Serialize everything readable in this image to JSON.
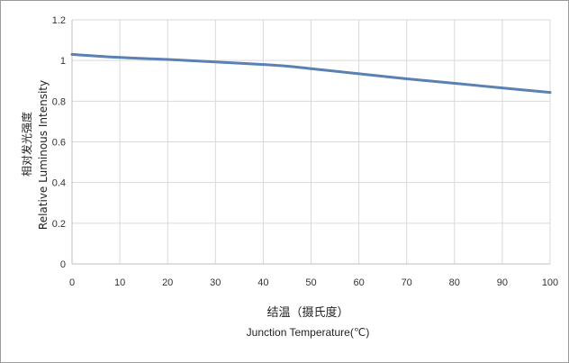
{
  "chart_data": {
    "type": "line",
    "title": "",
    "xlabel_cn": "结温（摄氏度）",
    "xlabel_en": "Junction Temperature(℃)",
    "ylabel_cn": "相对发光强度",
    "ylabel_en": "Relative Luminous Intensity",
    "xlim": [
      0,
      100
    ],
    "ylim": [
      0,
      1.2
    ],
    "x_ticks": [
      "0",
      "10",
      "20",
      "30",
      "40",
      "50",
      "60",
      "70",
      "80",
      "90",
      "100"
    ],
    "y_ticks": [
      "0",
      "0.2",
      "0.4",
      "0.6",
      "0.8",
      "1",
      "1.2"
    ],
    "grid": true,
    "series": [
      {
        "color": "#5b80b4",
        "x": [
          0,
          10,
          20,
          30,
          40,
          45,
          50,
          60,
          70,
          80,
          90,
          100
        ],
        "y": [
          1.03,
          1.015,
          1.005,
          0.993,
          0.98,
          0.972,
          0.96,
          0.935,
          0.91,
          0.888,
          0.865,
          0.843
        ]
      }
    ]
  }
}
